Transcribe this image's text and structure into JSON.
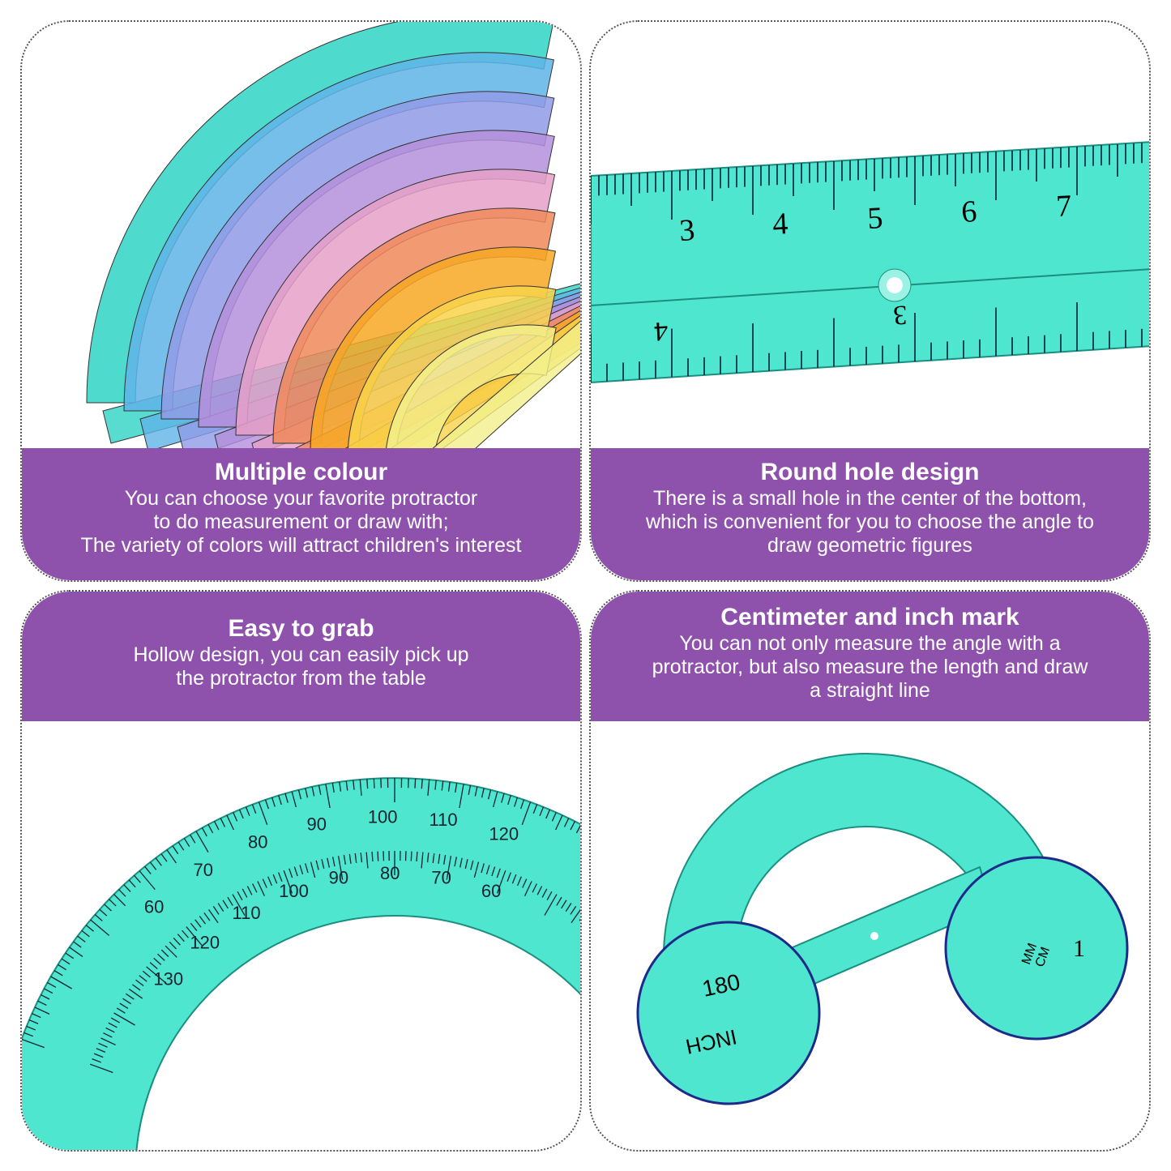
{
  "colors": {
    "banner": "#8e52ad",
    "teal": "#3fe0c8",
    "rainbow": [
      "#2fd3c4",
      "#5fb4e8",
      "#8f9be6",
      "#b48fdc",
      "#e5a0c8",
      "#f08a5a",
      "#f7a823",
      "#f9d34a",
      "#f3f08a"
    ]
  },
  "panels": [
    {
      "title": "Multiple colour",
      "lines": [
        "You can choose your favorite protractor",
        "to do measurement or draw with;",
        "The variety of colors will attract children's interest"
      ]
    },
    {
      "title": "Round hole design",
      "lines": [
        "There is a small hole in the center of the bottom,",
        "which is convenient for you to choose the angle to",
        "draw geometric figures"
      ]
    },
    {
      "title": "Easy to grab",
      "lines": [
        "Hollow design, you can easily pick up",
        "the protractor from the table"
      ]
    },
    {
      "title": "Centimeter and inch mark",
      "lines": [
        "You can not only measure the angle with a",
        "protractor, but also measure the length and draw",
        "a straight line"
      ]
    }
  ],
  "ruler": {
    "cm": [
      "3",
      "4",
      "5",
      "6",
      "7"
    ],
    "inch": [
      "4",
      "3"
    ]
  },
  "protractor": {
    "outer": [
      "60",
      "70",
      "80",
      "90",
      "100",
      "110",
      "120"
    ],
    "inner": [
      "130",
      "120",
      "110",
      "100",
      "90",
      "80",
      "70",
      "60"
    ],
    "zoom_labels": [
      "180",
      "INCH",
      "MM",
      "CM",
      "1"
    ]
  }
}
